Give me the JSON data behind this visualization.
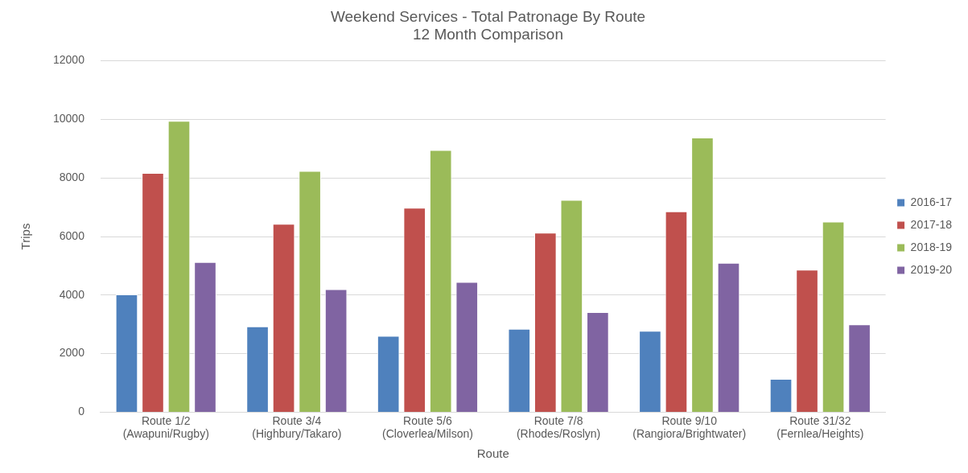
{
  "chart_data": {
    "type": "bar",
    "title": "Weekend Services - Total Patronage By Route",
    "subtitle": "12 Month Comparison",
    "xlabel": "Route",
    "ylabel": "Trips",
    "categories": [
      "Route 1/2\n(Awapuni/Rugby)",
      "Route 3/4\n(Highbury/Takaro)",
      "Route 5/6\n(Cloverlea/Milson)",
      "Route 7/8\n(Rhodes/Roslyn)",
      "Route 9/10\n(Rangiora/Brightwater)",
      "Route 31/32\n(Fernlea/Heights)"
    ],
    "series": [
      {
        "name": "2016-17",
        "color": "#4f81bd",
        "values": [
          4020,
          2930,
          2610,
          2850,
          2780,
          1140
        ]
      },
      {
        "name": "2017-18",
        "color": "#c0504d",
        "values": [
          8170,
          6430,
          6980,
          6130,
          6860,
          4870
        ]
      },
      {
        "name": "2018-19",
        "color": "#9bbb59",
        "values": [
          9950,
          8240,
          8950,
          7250,
          9380,
          6510
        ]
      },
      {
        "name": "2019-20",
        "color": "#8064a2",
        "values": [
          5130,
          4200,
          4450,
          3420,
          5100,
          3000
        ]
      }
    ],
    "ylim": [
      0,
      12000
    ],
    "yticks": [
      0,
      2000,
      4000,
      6000,
      8000,
      10000,
      12000
    ],
    "grid": "y",
    "legend": "right"
  }
}
